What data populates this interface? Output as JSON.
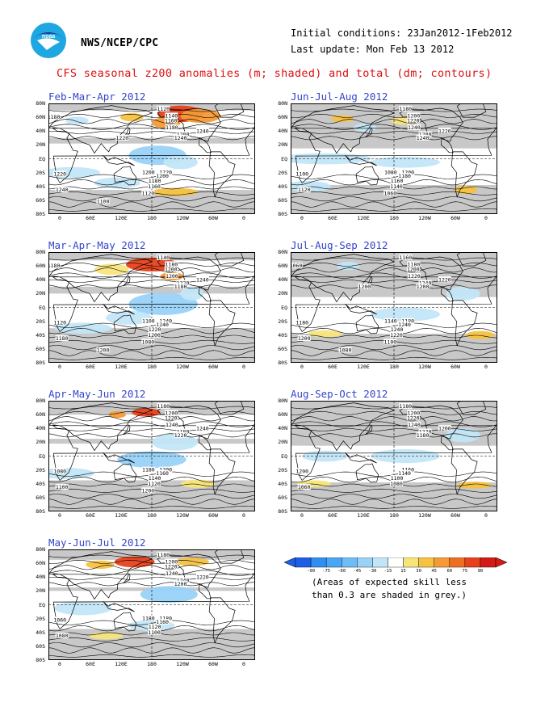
{
  "header": {
    "org": "NWS/NCEP/CPC",
    "initial_conditions": "Initial conditions: 23Jan2012-1Feb2012",
    "last_update": "Last update: Mon Feb 13 2012",
    "title": "CFS seasonal z200 anomalies (m; shaded) and total (dm; contours)",
    "logo_text": "noaa",
    "logo_colors": {
      "outer": "#1ea7e0",
      "inner": "#1b2f8f",
      "bird": "#ffffff"
    }
  },
  "axes": {
    "lat_labels": [
      "80N",
      "60N",
      "40N",
      "20N",
      "EQ",
      "20S",
      "40S",
      "60S",
      "80S"
    ],
    "lon_labels": [
      "0",
      "60E",
      "120E",
      "180",
      "120W",
      "60W",
      "0"
    ]
  },
  "panels": [
    {
      "id": "fma",
      "title": "Feb-Mar-Apr 2012",
      "contour_labels": [
        "1120",
        "1140",
        "1160",
        "1180",
        "1200",
        "1240",
        "1240",
        "1220",
        "1200",
        "1180",
        "1160",
        "1240",
        "1220",
        "1200",
        "1120",
        "1100",
        "1180",
        "1220"
      ]
    },
    {
      "id": "jja",
      "title": "Jun-Jul-Aug 2012",
      "contour_labels": [
        "1180",
        "1200",
        "1220",
        "1240",
        "1200",
        "1220",
        "1240",
        "1200",
        "1180",
        "1160",
        "1140",
        "1120",
        "1100",
        "1080",
        "1060"
      ]
    },
    {
      "id": "mam",
      "title": "Mar-Apr-May 2012",
      "contour_labels": [
        "1140",
        "1180",
        "1200",
        "1200",
        "1220",
        "1240",
        "1180",
        "1240",
        "1240",
        "1220",
        "1200",
        "1180",
        "1120",
        "1100",
        "1080",
        "1200",
        "1180"
      ]
    },
    {
      "id": "jas",
      "title": "Jul-Aug-Sep 2012",
      "contour_labels": [
        "1160",
        "1180",
        "1200",
        "1220",
        "1240",
        "1220",
        "1200",
        "1180",
        "1240",
        "1240",
        "1220",
        "1200",
        "1180",
        "1140",
        "1100",
        "1080",
        "1060",
        "1200"
      ]
    },
    {
      "id": "amj",
      "title": "Apr-May-Jun 2012",
      "contour_labels": [
        "1180",
        "1200",
        "1220",
        "1240",
        "1180",
        "1240",
        "1220",
        "1200",
        "1160",
        "1140",
        "1120",
        "1100",
        "1080",
        "1180",
        "1200"
      ]
    },
    {
      "id": "aso",
      "title": "Aug-Sep-Oct 2012",
      "contour_labels": [
        "1180",
        "1200",
        "1220",
        "1240",
        "1220",
        "1200",
        "1180",
        "1160",
        "1140",
        "1100",
        "1080",
        "1060",
        "1200"
      ]
    },
    {
      "id": "mjj",
      "title": "May-Jun-Jul 2012",
      "contour_labels": [
        "1180",
        "1200",
        "1220",
        "1240",
        "1240",
        "1220",
        "1200",
        "1180",
        "1160",
        "1120",
        "1100",
        "1080",
        "1060",
        "1180"
      ]
    }
  ],
  "legend": {
    "ticks": [
      "-90",
      "-75",
      "-60",
      "-45",
      "-30",
      "-15",
      "15",
      "30",
      "45",
      "60",
      "75",
      "90"
    ],
    "colors": [
      "#1c5fe6",
      "#2f8ef0",
      "#4aa6f4",
      "#6fbdf6",
      "#98d2f7",
      "#c2e6f7",
      "#ffffff",
      "#f7e57a",
      "#f7c242",
      "#f59a36",
      "#ef6f22",
      "#e8401c",
      "#d41a14"
    ],
    "note_line1": "(Areas of expected skill less",
    "note_line2": "than 0.3 are shaded in grey.)"
  }
}
